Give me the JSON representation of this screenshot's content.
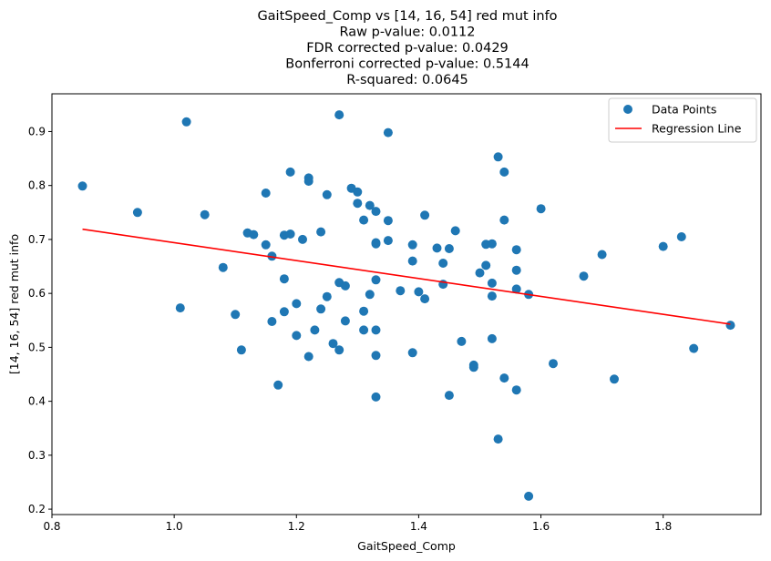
{
  "chart_data": {
    "type": "scatter",
    "title_lines": [
      "GaitSpeed_Comp vs [14, 16, 54] red mut info",
      "Raw p-value: 0.0112",
      "FDR corrected p-value: 0.0429",
      "Bonferroni corrected p-value: 0.5144",
      "R-squared: 0.0645"
    ],
    "xlabel": "GaitSpeed_Comp",
    "ylabel": "[14, 16, 54] red mut info",
    "xlim": [
      0.8,
      1.96
    ],
    "ylim": [
      0.19,
      0.97
    ],
    "xticks": [
      0.8,
      1.0,
      1.2,
      1.4,
      1.6,
      1.8
    ],
    "xtick_labels": [
      "0.8",
      "1.0",
      "1.2",
      "1.4",
      "1.6",
      "1.8"
    ],
    "yticks": [
      0.2,
      0.3,
      0.4,
      0.5,
      0.6,
      0.7,
      0.8,
      0.9
    ],
    "ytick_labels": [
      "0.2",
      "0.3",
      "0.4",
      "0.5",
      "0.6",
      "0.7",
      "0.8",
      "0.9"
    ],
    "grid": false,
    "legend_position": "top-right",
    "series": [
      {
        "name": "Data Points",
        "kind": "scatter",
        "color": "#1f77b4",
        "points": [
          [
            0.85,
            0.799
          ],
          [
            0.94,
            0.75
          ],
          [
            1.01,
            0.573
          ],
          [
            1.02,
            0.918
          ],
          [
            1.05,
            0.746
          ],
          [
            1.08,
            0.648
          ],
          [
            1.1,
            0.561
          ],
          [
            1.11,
            0.495
          ],
          [
            1.12,
            0.712
          ],
          [
            1.13,
            0.709
          ],
          [
            1.15,
            0.786
          ],
          [
            1.15,
            0.69
          ],
          [
            1.16,
            0.669
          ],
          [
            1.16,
            0.548
          ],
          [
            1.17,
            0.43
          ],
          [
            1.18,
            0.708
          ],
          [
            1.18,
            0.627
          ],
          [
            1.18,
            0.566
          ],
          [
            1.19,
            0.825
          ],
          [
            1.19,
            0.71
          ],
          [
            1.2,
            0.581
          ],
          [
            1.2,
            0.522
          ],
          [
            1.21,
            0.7
          ],
          [
            1.22,
            0.814
          ],
          [
            1.22,
            0.808
          ],
          [
            1.22,
            0.483
          ],
          [
            1.23,
            0.532
          ],
          [
            1.24,
            0.714
          ],
          [
            1.24,
            0.571
          ],
          [
            1.25,
            0.783
          ],
          [
            1.25,
            0.594
          ],
          [
            1.26,
            0.507
          ],
          [
            1.27,
            0.931
          ],
          [
            1.27,
            0.62
          ],
          [
            1.27,
            0.495
          ],
          [
            1.28,
            0.614
          ],
          [
            1.28,
            0.549
          ],
          [
            1.29,
            0.795
          ],
          [
            1.3,
            0.788
          ],
          [
            1.3,
            0.767
          ],
          [
            1.31,
            0.736
          ],
          [
            1.31,
            0.567
          ],
          [
            1.31,
            0.532
          ],
          [
            1.32,
            0.763
          ],
          [
            1.32,
            0.598
          ],
          [
            1.33,
            0.752
          ],
          [
            1.33,
            0.694
          ],
          [
            1.33,
            0.692
          ],
          [
            1.33,
            0.625
          ],
          [
            1.33,
            0.532
          ],
          [
            1.33,
            0.485
          ],
          [
            1.33,
            0.408
          ],
          [
            1.35,
            0.898
          ],
          [
            1.35,
            0.735
          ],
          [
            1.35,
            0.698
          ],
          [
            1.37,
            0.605
          ],
          [
            1.39,
            0.69
          ],
          [
            1.39,
            0.66
          ],
          [
            1.39,
            0.49
          ],
          [
            1.4,
            0.603
          ],
          [
            1.41,
            0.745
          ],
          [
            1.41,
            0.59
          ],
          [
            1.43,
            0.684
          ],
          [
            1.44,
            0.656
          ],
          [
            1.44,
            0.617
          ],
          [
            1.45,
            0.683
          ],
          [
            1.45,
            0.411
          ],
          [
            1.46,
            0.716
          ],
          [
            1.47,
            0.511
          ],
          [
            1.49,
            0.467
          ],
          [
            1.49,
            0.463
          ],
          [
            1.5,
            0.638
          ],
          [
            1.51,
            0.691
          ],
          [
            1.51,
            0.652
          ],
          [
            1.52,
            0.692
          ],
          [
            1.52,
            0.619
          ],
          [
            1.52,
            0.595
          ],
          [
            1.52,
            0.516
          ],
          [
            1.53,
            0.853
          ],
          [
            1.53,
            0.33
          ],
          [
            1.54,
            0.825
          ],
          [
            1.54,
            0.736
          ],
          [
            1.54,
            0.443
          ],
          [
            1.56,
            0.681
          ],
          [
            1.56,
            0.643
          ],
          [
            1.56,
            0.608
          ],
          [
            1.56,
            0.421
          ],
          [
            1.58,
            0.598
          ],
          [
            1.58,
            0.224
          ],
          [
            1.6,
            0.757
          ],
          [
            1.62,
            0.47
          ],
          [
            1.67,
            0.632
          ],
          [
            1.7,
            0.672
          ],
          [
            1.72,
            0.441
          ],
          [
            1.8,
            0.687
          ],
          [
            1.83,
            0.705
          ],
          [
            1.85,
            0.498
          ],
          [
            1.91,
            0.541
          ]
        ]
      },
      {
        "name": "Regression Line",
        "kind": "line",
        "color": "#ff0000",
        "x": [
          0.85,
          1.91
        ],
        "y": [
          0.719,
          0.543
        ]
      }
    ]
  }
}
